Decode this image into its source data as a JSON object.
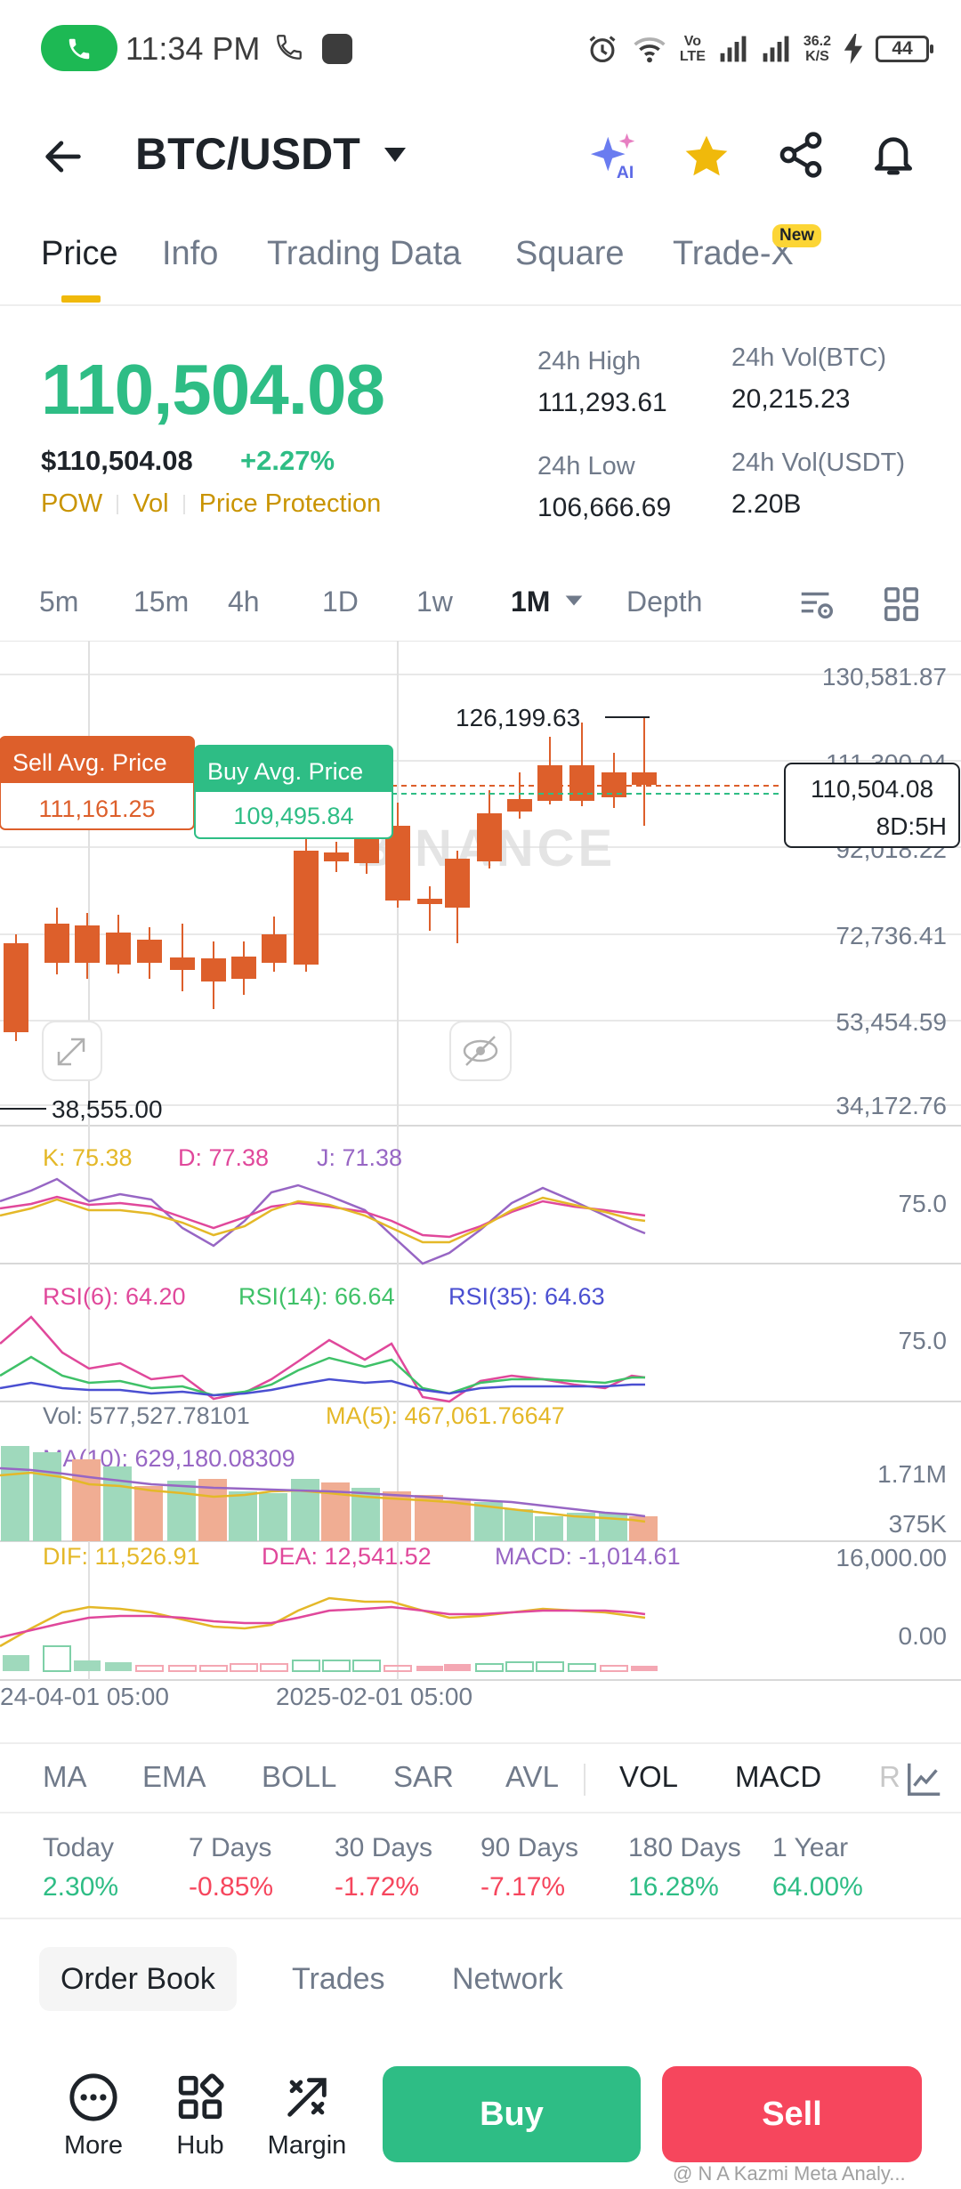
{
  "status_bar": {
    "time": "11:34 PM",
    "network_top": "Vo",
    "network_bottom": "LTE",
    "speed_top": "36.2",
    "speed_bottom": "K/S",
    "battery": "44"
  },
  "header": {
    "pair": "BTC/USDT",
    "icons": [
      "back-arrow-icon",
      "caret-down-icon",
      "ai-sparkle-icon",
      "star-icon",
      "share-icon",
      "bell-icon"
    ]
  },
  "tabs": {
    "items": [
      "Price",
      "Info",
      "Trading Data",
      "Square",
      "Trade-X"
    ],
    "active": "Price",
    "new_badge": "New"
  },
  "price": {
    "last": "110,504.08",
    "usd": "$110,504.08",
    "change": "+2.27%",
    "tags": [
      "POW",
      "Vol",
      "Price Protection"
    ]
  },
  "stats": {
    "high_label": "24h High",
    "high_value": "111,293.61",
    "low_label": "24h Low",
    "low_value": "106,666.69",
    "vol_btc_label": "24h Vol(BTC)",
    "vol_btc_value": "20,215.23",
    "vol_usdt_label": "24h Vol(USDT)",
    "vol_usdt_value": "2.20B"
  },
  "intervals": {
    "items": [
      "5m",
      "15m",
      "4h",
      "1D",
      "1w",
      "1M",
      "Depth"
    ],
    "active": "1M"
  },
  "chart": {
    "y_labels": [
      "130,581.87",
      "111,300.04",
      "92,018.22",
      "72,736.41",
      "53,454.59",
      "34,172.76"
    ],
    "max_label": "126,199.63",
    "min_label": "38,555.00",
    "sell_avg_label": "Sell Avg. Price",
    "sell_avg_value": "111,161.25",
    "buy_avg_label": "Buy Avg. Price",
    "buy_avg_value": "109,495.84",
    "last_price_box": "110,504.08",
    "countdown": "8D:5H",
    "kdj": {
      "k": "K: 75.38",
      "d": "D: 77.38",
      "j": "J: 71.38",
      "scale": "75.0"
    },
    "rsi": {
      "r6": "RSI(6): 64.20",
      "r14": "RSI(14): 66.64",
      "r35": "RSI(35): 64.63",
      "scale": "75.0"
    },
    "vol": {
      "vol": "Vol: 577,527.78101",
      "ma5": "MA(5): 467,061.76647",
      "ma10": "MA(10): 629,180.08309",
      "scale_top": "1.71M",
      "scale_bottom": "375K"
    },
    "macd": {
      "dif": "DIF: 11,526.91",
      "dea": "DEA: 12,541.52",
      "macd": "MACD: -1,014.61",
      "scale_top": "16,000.00",
      "scale_bottom": "0.00"
    },
    "x_labels": [
      "24-04-01 05:00",
      "2025-02-01 05:00"
    ],
    "watermark": "BINANCE",
    "colors": {
      "up": "#2ebd85",
      "down": "#dd5f2b",
      "k": "#e4b828",
      "d": "#e0489b",
      "j": "#9766c4",
      "rsi6": "#e0489b",
      "rsi14": "#3fc168",
      "rsi35": "#4a4fd1"
    }
  },
  "indicator_tabs": {
    "items": [
      "MA",
      "EMA",
      "BOLL",
      "SAR",
      "AVL",
      "VOL",
      "MACD",
      "R"
    ],
    "active": [
      "VOL",
      "MACD"
    ]
  },
  "performance": [
    {
      "label": "Today",
      "value": "2.30%",
      "dir": "up"
    },
    {
      "label": "7 Days",
      "value": "-0.85%",
      "dir": "down"
    },
    {
      "label": "30 Days",
      "value": "-1.72%",
      "dir": "down"
    },
    {
      "label": "90 Days",
      "value": "-7.17%",
      "dir": "down"
    },
    {
      "label": "180 Days",
      "value": "16.28%",
      "dir": "up"
    },
    {
      "label": "1 Year",
      "value": "64.00%",
      "dir": "up"
    }
  ],
  "bottom_tabs": {
    "items": [
      "Order Book",
      "Trades",
      "Network"
    ],
    "active": "Order Book"
  },
  "actions": {
    "more": "More",
    "hub": "Hub",
    "margin": "Margin",
    "buy": "Buy",
    "sell": "Sell",
    "watermark": "@ N A Kazmi Meta Analy..."
  }
}
